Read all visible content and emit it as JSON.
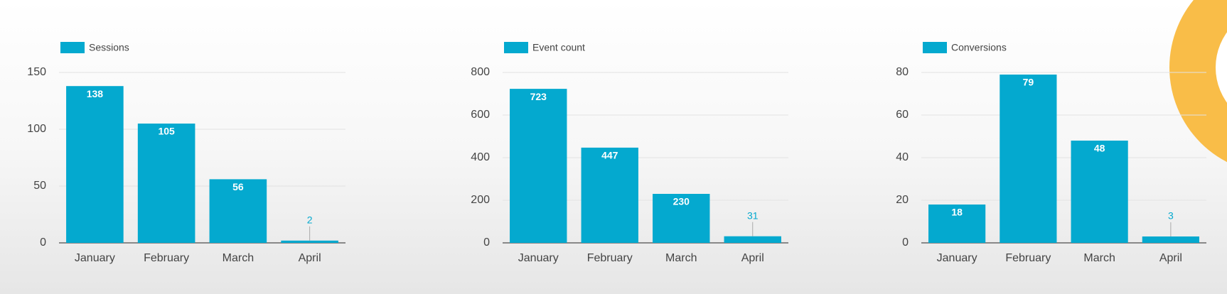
{
  "chart_data": [
    {
      "type": "bar",
      "categories": [
        "January",
        "February",
        "March",
        "April"
      ],
      "series": [
        {
          "name": "Sessions",
          "color": "#04a9cf",
          "values": [
            138,
            105,
            56,
            2
          ]
        }
      ],
      "ylim": [
        0,
        150
      ],
      "yticks": [
        0,
        50,
        100,
        150
      ],
      "grid": true
    },
    {
      "type": "bar",
      "categories": [
        "January",
        "February",
        "March",
        "April"
      ],
      "series": [
        {
          "name": "Event count",
          "color": "#04a9cf",
          "values": [
            723,
            447,
            230,
            31
          ]
        }
      ],
      "ylim": [
        0,
        800
      ],
      "yticks": [
        0,
        200,
        400,
        600,
        800
      ],
      "grid": true
    },
    {
      "type": "bar",
      "categories": [
        "January",
        "February",
        "March",
        "April"
      ],
      "series": [
        {
          "name": "Conversions",
          "color": "#04a9cf",
          "values": [
            18,
            79,
            48,
            3
          ]
        }
      ],
      "ylim": [
        0,
        80
      ],
      "yticks": [
        0,
        20,
        40,
        60,
        80
      ],
      "grid": true
    }
  ]
}
